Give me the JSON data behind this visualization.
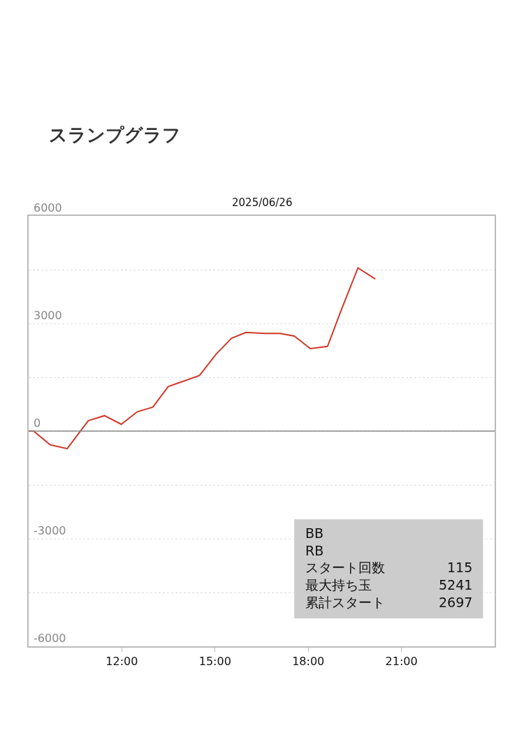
{
  "chart_data": {
    "type": "line",
    "title": "スランプグラフ",
    "subtitle": "2025/06/26",
    "x": [
      9.0,
      9.16,
      9.69,
      10.24,
      10.92,
      11.44,
      11.98,
      12.5,
      13.0,
      13.49,
      14.5,
      15.03,
      15.53,
      16.0,
      16.6,
      17.1,
      17.55,
      18.07,
      18.62,
      19.05,
      19.6,
      20.16
    ],
    "series": [
      {
        "color": "#d0392b",
        "values": [
          0,
          0,
          -380,
          -490,
          290,
          430,
          190,
          540,
          670,
          1240,
          1550,
          2140,
          2590,
          2750,
          2720,
          2720,
          2650,
          2300,
          2360,
          3350,
          4550,
          4240
        ]
      }
    ],
    "xlim": [
      9,
      24
    ],
    "xticks": [
      {
        "value": 12,
        "label": "12:00"
      },
      {
        "value": 15,
        "label": "15:00"
      },
      {
        "value": 18,
        "label": "18:00"
      },
      {
        "value": 21,
        "label": "21:00"
      }
    ],
    "ylim": [
      -6000,
      6000
    ],
    "yticks": [
      -6000,
      {
        "value": -4500,
        "label": null
      },
      -3000,
      {
        "value": -1500,
        "label": null
      },
      0,
      {
        "value": 1500,
        "label": null
      },
      3000,
      {
        "value": 4500,
        "label": null
      },
      6000
    ],
    "ref_lines": [
      {
        "axis": "y",
        "value": 0,
        "color": "#888888"
      }
    ],
    "grid": "y",
    "marker": "none",
    "line_style": "solid",
    "annotations": [
      "BB",
      "RB",
      "スタート回数 115",
      "最大持ち玉 5241",
      "累計スタート 2697"
    ]
  }
}
